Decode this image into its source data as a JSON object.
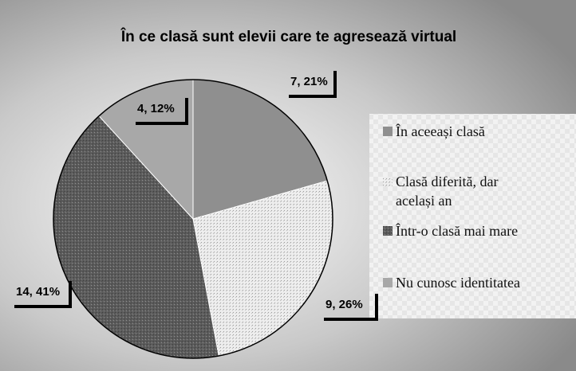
{
  "chart_data": {
    "type": "pie",
    "title": "În ce clasă sunt elevii care te agresează virtual",
    "categories": [
      "În aceeași clasă",
      "Clasă diferită, dar același an",
      "Într-o clasă mai mare",
      "Nu cunosc identitatea"
    ],
    "values": [
      7,
      9,
      14,
      4
    ],
    "value_labels": [
      "7, 21%",
      "9, 26%",
      "14, 41%",
      "4, 12%"
    ],
    "colors": [
      "#8f8f8f",
      "#ececec",
      "#5c5c5c",
      "#a8a8a8"
    ]
  }
}
